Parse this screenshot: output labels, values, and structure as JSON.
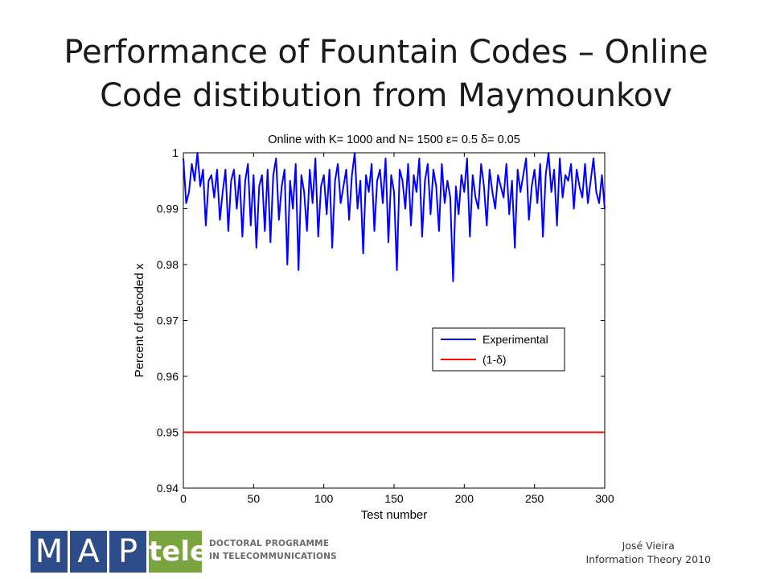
{
  "slide": {
    "title_line1": "Performance of Fountain Codes – Online",
    "title_line2": "Code distibution from Maymounkov"
  },
  "footer": {
    "author": "José Vieira",
    "course": "Information Theory 2010"
  },
  "logo": {
    "letter_m": "M",
    "letter_a": "A",
    "letter_p": "P",
    "word_tele": "tele",
    "program_line1": "DOCTORAL PROGRAMME",
    "program_line2": "IN TELECOMMUNICATIONS",
    "colors": {
      "blue": "#2c4d8a",
      "green": "#7aa440"
    }
  },
  "chart_data": {
    "type": "line",
    "title": "Online with K= 1000  and N= 1500  ε= 0.5  δ= 0.05",
    "xlabel": "Test number",
    "ylabel": "Percent of decoded x",
    "xlim": [
      0,
      300
    ],
    "ylim": [
      0.94,
      1.0
    ],
    "xticks": [
      "0",
      "50",
      "100",
      "150",
      "200",
      "250",
      "300"
    ],
    "yticks": [
      "0.94",
      "0.95",
      "0.96",
      "0.97",
      "0.98",
      "0.99",
      "1"
    ],
    "grid": false,
    "legend_position": "center-right",
    "series": [
      {
        "name": "Experimental",
        "color": "#0000ff",
        "x": [
          0,
          2,
          4,
          6,
          8,
          10,
          12,
          14,
          16,
          18,
          20,
          22,
          24,
          26,
          28,
          30,
          32,
          34,
          36,
          38,
          40,
          42,
          44,
          46,
          48,
          50,
          52,
          54,
          56,
          58,
          60,
          62,
          64,
          66,
          68,
          70,
          72,
          74,
          76,
          78,
          80,
          82,
          84,
          86,
          88,
          90,
          92,
          94,
          96,
          98,
          100,
          102,
          104,
          106,
          108,
          110,
          112,
          114,
          116,
          118,
          120,
          122,
          124,
          126,
          128,
          130,
          132,
          134,
          136,
          138,
          140,
          142,
          144,
          146,
          148,
          150,
          152,
          154,
          156,
          158,
          160,
          162,
          164,
          166,
          168,
          170,
          172,
          174,
          176,
          178,
          180,
          182,
          184,
          186,
          188,
          190,
          192,
          194,
          196,
          198,
          200,
          202,
          204,
          206,
          208,
          210,
          212,
          214,
          216,
          218,
          220,
          222,
          224,
          226,
          228,
          230,
          232,
          234,
          236,
          238,
          240,
          242,
          244,
          246,
          248,
          250,
          252,
          254,
          256,
          258,
          260,
          262,
          264,
          266,
          268,
          270,
          272,
          274,
          276,
          278,
          280,
          282,
          284,
          286,
          288,
          290,
          292,
          294,
          296,
          298,
          300
        ],
        "values": [
          0.999,
          0.991,
          0.993,
          0.998,
          0.995,
          1.0,
          0.994,
          0.997,
          0.987,
          0.995,
          0.996,
          0.992,
          0.997,
          0.988,
          0.993,
          0.997,
          0.986,
          0.995,
          0.997,
          0.99,
          0.996,
          0.985,
          0.995,
          0.998,
          0.987,
          0.996,
          0.983,
          0.994,
          0.996,
          0.986,
          0.997,
          0.984,
          0.996,
          0.999,
          0.988,
          0.994,
          0.997,
          0.98,
          0.995,
          0.99,
          0.998,
          0.979,
          0.996,
          0.993,
          0.986,
          0.997,
          0.991,
          0.999,
          0.985,
          0.994,
          0.996,
          0.989,
          0.997,
          0.983,
          0.995,
          0.998,
          0.991,
          0.994,
          0.997,
          0.988,
          0.996,
          1.0,
          0.99,
          0.995,
          0.982,
          0.996,
          0.993,
          0.998,
          0.986,
          0.995,
          0.997,
          0.991,
          0.999,
          0.984,
          0.996,
          0.993,
          0.979,
          0.997,
          0.995,
          0.99,
          0.998,
          0.987,
          0.996,
          0.993,
          0.999,
          0.985,
          0.995,
          0.998,
          0.989,
          0.997,
          0.994,
          0.986,
          0.998,
          0.991,
          0.995,
          0.992,
          0.977,
          0.994,
          0.989,
          0.996,
          0.993,
          0.999,
          0.985,
          0.996,
          0.992,
          0.99,
          0.998,
          0.994,
          0.987,
          0.997,
          0.993,
          0.99,
          0.996,
          0.994,
          0.992,
          0.998,
          0.989,
          0.995,
          0.983,
          0.997,
          0.993,
          0.996,
          0.999,
          0.988,
          0.994,
          0.997,
          0.991,
          0.998,
          0.985,
          0.996,
          1.0,
          0.993,
          0.997,
          0.987,
          0.999,
          0.992,
          0.996,
          0.995,
          0.998,
          0.99,
          0.997,
          0.994,
          0.992,
          0.998,
          0.991,
          0.995,
          0.999,
          0.993,
          0.991,
          0.996,
          0.99
        ]
      },
      {
        "name": "(1-δ)",
        "color": "#ff0000",
        "x": [
          0,
          300
        ],
        "values": [
          0.95,
          0.95
        ]
      }
    ]
  }
}
